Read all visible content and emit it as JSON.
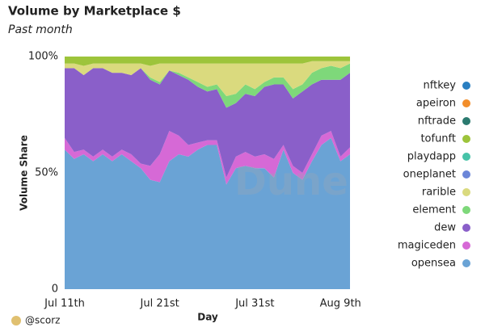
{
  "chart_data": {
    "type": "stacked_area",
    "title": "Volume by Marketplace $",
    "subtitle": "Past month",
    "x_label": "Day",
    "y_label": "Volume Share",
    "watermark": "Dune",
    "credit": "@scorz",
    "categories": [
      "Jul 11th",
      null,
      null,
      null,
      null,
      null,
      null,
      null,
      null,
      null,
      "Jul 21st",
      null,
      null,
      null,
      null,
      null,
      null,
      null,
      null,
      null,
      "Jul 31st",
      null,
      null,
      null,
      null,
      null,
      null,
      null,
      null,
      "Aug 9th",
      null
    ],
    "ylim": [
      0,
      100
    ],
    "yticks": [
      0,
      {
        "value": 50,
        "label": "50%"
      },
      {
        "value": 100,
        "label": "100%"
      }
    ],
    "legend": "right",
    "series": [
      {
        "name": "nftkey",
        "color": "#2a7fc1",
        "values": [
          0,
          0,
          0,
          0,
          0,
          0,
          0,
          0,
          0,
          0,
          0,
          0,
          0,
          0,
          0,
          0,
          0,
          0,
          0,
          0,
          0,
          0,
          0,
          0,
          0,
          0,
          0,
          0,
          0,
          0,
          0
        ]
      },
      {
        "name": "apeiron",
        "color": "#f28e2b",
        "values": [
          0,
          0,
          0,
          0,
          0,
          0,
          0,
          0,
          0,
          0,
          0,
          0,
          0,
          0,
          0,
          0,
          0,
          0,
          0,
          0,
          0,
          0,
          0,
          0,
          0,
          0,
          0,
          0,
          0,
          0,
          0
        ]
      },
      {
        "name": "nftrade",
        "color": "#2b7a6f",
        "values": [
          0,
          0,
          0,
          0,
          0,
          0,
          0,
          0,
          0,
          0,
          0,
          0,
          0,
          0,
          0,
          0,
          0,
          0,
          0,
          0,
          0,
          0,
          0,
          0,
          0,
          0,
          0,
          0,
          0,
          0,
          0
        ]
      },
      {
        "name": "tofunft",
        "color": "#9dc43b",
        "values": [
          3,
          3,
          4,
          3,
          3,
          3,
          3,
          3,
          3,
          4,
          3,
          3,
          3,
          3,
          3,
          3,
          3,
          3,
          3,
          3,
          3,
          3,
          3,
          3,
          3,
          3,
          2,
          2,
          2,
          2,
          2
        ]
      },
      {
        "name": "playdapp",
        "color": "#47c3a8",
        "values": [
          0,
          0,
          0,
          0,
          0,
          0,
          0,
          0,
          0,
          0,
          0,
          0,
          0,
          0,
          0,
          0,
          0,
          0,
          0,
          0,
          0,
          0,
          0,
          0,
          0,
          0,
          0,
          0,
          0,
          0,
          0
        ]
      },
      {
        "name": "oneplanet",
        "color": "#6b86d8",
        "values": [
          0,
          0,
          0,
          0,
          0,
          0,
          0,
          0,
          0,
          0,
          0,
          0,
          0,
          0,
          0,
          0,
          0,
          0,
          0,
          0,
          0,
          0,
          0,
          0,
          0,
          0,
          0,
          0,
          0,
          0,
          0
        ]
      },
      {
        "name": "rarible",
        "color": "#dada7e",
        "values": [
          2,
          2,
          4,
          2,
          2,
          4,
          4,
          5,
          2,
          5,
          8,
          3,
          4,
          6,
          8,
          10,
          9,
          14,
          13,
          9,
          11,
          8,
          6,
          6,
          11,
          9,
          5,
          3,
          2,
          3,
          1
        ]
      },
      {
        "name": "element",
        "color": "#7ed87a",
        "values": [
          0,
          0,
          0,
          0,
          0,
          0,
          0,
          0,
          0,
          1,
          1,
          0,
          1,
          1,
          2,
          2,
          2,
          5,
          4,
          4,
          3,
          2,
          3,
          3,
          4,
          3,
          5,
          5,
          6,
          5,
          4
        ]
      },
      {
        "name": "dew",
        "color": "#8a5fc9",
        "values": [
          30,
          36,
          32,
          38,
          35,
          36,
          33,
          34,
          41,
          37,
          30,
          26,
          26,
          28,
          24,
          21,
          22,
          30,
          23,
          25,
          26,
          29,
          32,
          26,
          29,
          35,
          30,
          24,
          22,
          33,
          32
        ]
      },
      {
        "name": "magiceden",
        "color": "#d669d6",
        "values": [
          5,
          3,
          2,
          2,
          2,
          2,
          2,
          3,
          2,
          6,
          12,
          13,
          8,
          5,
          3,
          2,
          2,
          3,
          5,
          6,
          5,
          6,
          8,
          2,
          3,
          3,
          3,
          4,
          3,
          2,
          3
        ]
      },
      {
        "name": "opensea",
        "color": "#6aa3d5",
        "values": [
          60,
          56,
          58,
          55,
          58,
          55,
          58,
          55,
          52,
          47,
          46,
          55,
          58,
          57,
          60,
          62,
          62,
          45,
          52,
          53,
          52,
          52,
          48,
          60,
          50,
          47,
          55,
          62,
          65,
          55,
          58
        ]
      }
    ]
  }
}
